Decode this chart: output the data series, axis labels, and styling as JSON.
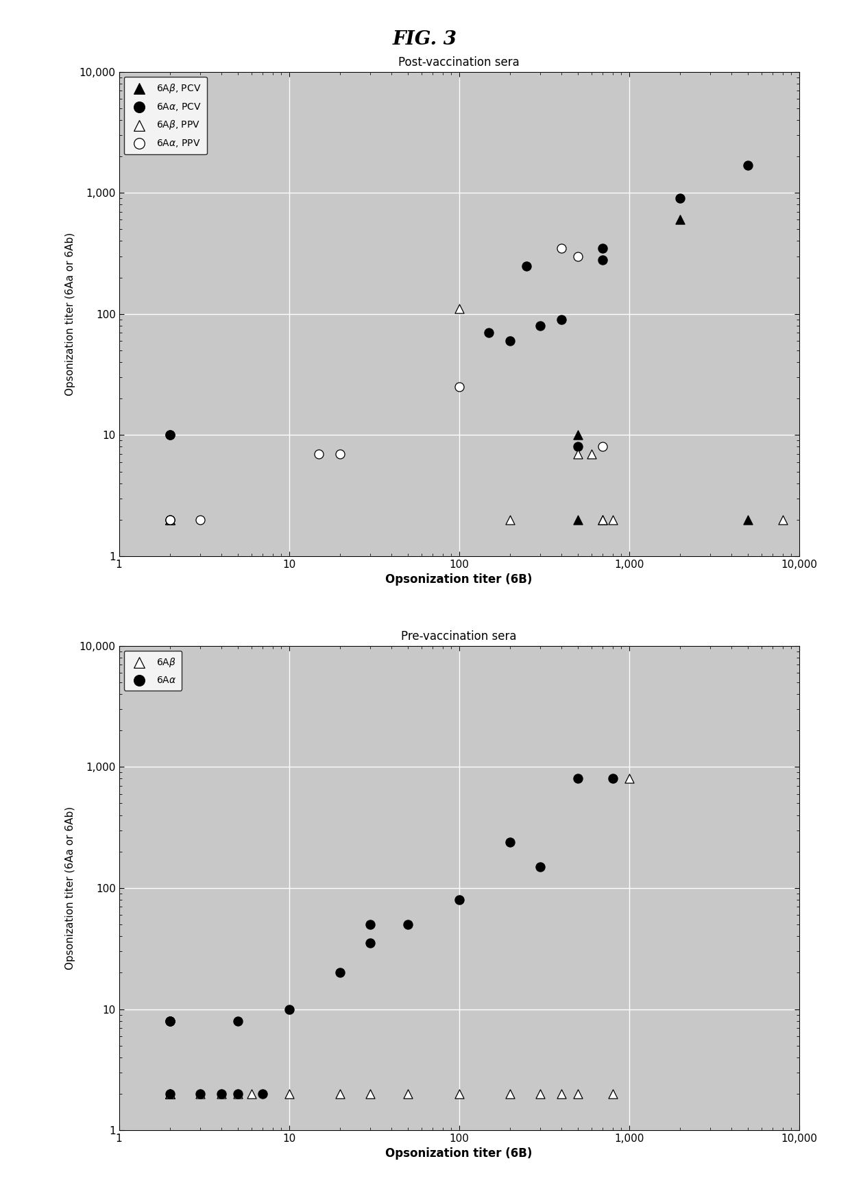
{
  "title": "FIG. 3",
  "plot1_title": "Post-vaccination sera",
  "plot2_title": "Pre-vaccination sera",
  "xlabel": "Opsonization titer (6B)",
  "ylabel": "Opsonization titer (6Aa or 6Ab)",
  "post_6Ab_PCV_x": [
    2,
    2,
    500,
    700,
    500,
    2000,
    5000
  ],
  "post_6Ab_PCV_y": [
    2,
    2,
    2,
    2,
    10,
    600,
    2
  ],
  "post_6Aa_PCV_x": [
    2,
    2,
    150,
    200,
    250,
    300,
    400,
    500,
    700,
    700,
    2000,
    5000
  ],
  "post_6Aa_PCV_y": [
    10,
    10,
    70,
    60,
    250,
    80,
    90,
    8,
    350,
    280,
    900,
    1700
  ],
  "post_6Ab_PPV_x": [
    2,
    100,
    200,
    500,
    600,
    700,
    800,
    8000
  ],
  "post_6Ab_PPV_y": [
    2,
    110,
    2,
    7,
    7,
    2,
    2,
    2
  ],
  "post_6Aa_PPV_x": [
    2,
    2,
    2,
    3,
    15,
    20,
    100,
    400,
    500,
    700
  ],
  "post_6Aa_PPV_y": [
    2,
    2,
    2,
    2,
    7,
    7,
    25,
    350,
    300,
    8
  ],
  "pre_6Ab_x": [
    2,
    2,
    2,
    2,
    2,
    2,
    3,
    4,
    5,
    6,
    10,
    20,
    30,
    50,
    100,
    200,
    300,
    400,
    500,
    800,
    1000
  ],
  "pre_6Ab_y": [
    2,
    2,
    2,
    2,
    2,
    2,
    2,
    2,
    2,
    2,
    2,
    2,
    2,
    2,
    2,
    2,
    2,
    2,
    2,
    2,
    800
  ],
  "pre_6Aa_x": [
    2,
    2,
    2,
    2,
    3,
    4,
    5,
    5,
    7,
    10,
    20,
    30,
    30,
    50,
    100,
    200,
    300,
    500,
    800
  ],
  "pre_6Aa_y": [
    8,
    8,
    8,
    2,
    2,
    2,
    2,
    8,
    2,
    10,
    20,
    35,
    50,
    50,
    80,
    240,
    150,
    800,
    800
  ],
  "background_color": "#c8c8c8",
  "grid_color": "white",
  "marker_size": 7
}
